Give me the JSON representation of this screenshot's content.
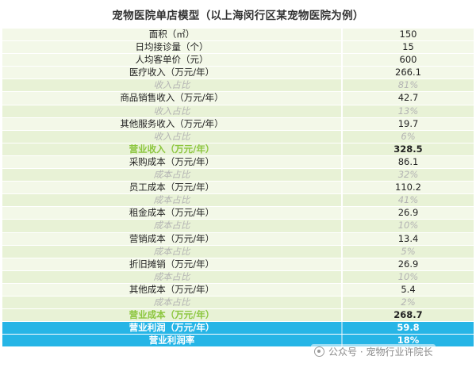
{
  "title": "宠物医院单店模型（以上海闵行区某宠物医院为例）",
  "rows": [
    {
      "label": "面积（㎡）",
      "value": "150",
      "kind": "light"
    },
    {
      "label": "日均接诊量（个）",
      "value": "15",
      "kind": "light"
    },
    {
      "label": "人均客单价（元）",
      "value": "600",
      "kind": "light"
    },
    {
      "label": "医疗收入（万元/年）",
      "value": "266.1",
      "kind": "light"
    },
    {
      "label": "收入占比",
      "value": "81%",
      "kind": "ratio"
    },
    {
      "label": "商品销售收入（万元/年）",
      "value": "42.7",
      "kind": "light"
    },
    {
      "label": "收入占比",
      "value": "13%",
      "kind": "ratio"
    },
    {
      "label": "其他服务收入（万元/年）",
      "value": "19.7",
      "kind": "light"
    },
    {
      "label": "收入占比",
      "value": "6%",
      "kind": "ratio"
    },
    {
      "label": "营业收入（万元/年）",
      "value": "328.5",
      "kind": "subtotal"
    },
    {
      "label": "采购成本（万元/年）",
      "value": "86.1",
      "kind": "light"
    },
    {
      "label": "成本占比",
      "value": "32%",
      "kind": "ratio"
    },
    {
      "label": "员工成本（万元/年）",
      "value": "110.2",
      "kind": "light"
    },
    {
      "label": "成本占比",
      "value": "41%",
      "kind": "ratio"
    },
    {
      "label": "租金成本（万元/年）",
      "value": "26.9",
      "kind": "light"
    },
    {
      "label": "成本占比",
      "value": "10%",
      "kind": "ratio"
    },
    {
      "label": "营销成本（万元/年）",
      "value": "13.4",
      "kind": "light"
    },
    {
      "label": "成本占比",
      "value": "5%",
      "kind": "ratio"
    },
    {
      "label": "折旧摊销（万元/年）",
      "value": "26.9",
      "kind": "light"
    },
    {
      "label": "成本占比",
      "value": "10%",
      "kind": "ratio"
    },
    {
      "label": "其他成本（万元/年）",
      "value": "5.4",
      "kind": "light"
    },
    {
      "label": "成本占比",
      "value": "2%",
      "kind": "ratio"
    },
    {
      "label": "营业成本（万元/年）",
      "value": "268.7",
      "kind": "subtotal"
    },
    {
      "label": "营业利润（万元/年）",
      "value": "59.8",
      "kind": "profit"
    },
    {
      "label": "营业利润率",
      "value": "18%",
      "kind": "profit"
    }
  ],
  "watermark": {
    "text": "公众号 · 宠物行业许院长",
    "icon": "wechat-official-account-icon"
  }
}
